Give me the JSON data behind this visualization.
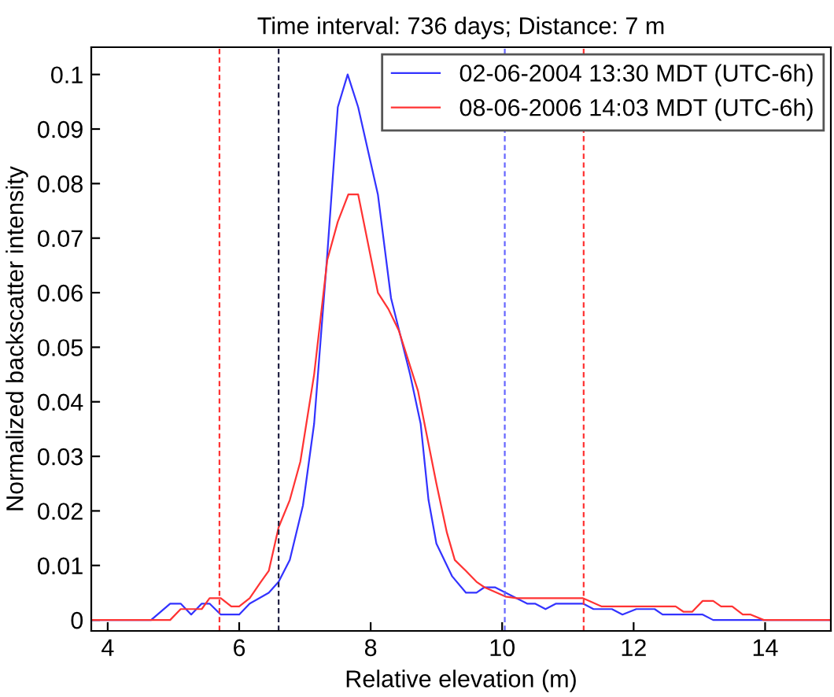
{
  "chart_data": {
    "type": "line",
    "title": "Time interval: 736 days; Distance: 7 m",
    "xlabel": "Relative elevation (m)",
    "ylabel": "Normalized backscatter intensity",
    "xlim": [
      3.75,
      15
    ],
    "xticks": [
      4,
      6,
      8,
      10,
      12,
      14
    ],
    "ylim": [
      -0.002,
      0.105
    ],
    "yticks": [
      0,
      0.01,
      0.02,
      0.03,
      0.04,
      0.05,
      0.06,
      0.07,
      0.08,
      0.09,
      0.1
    ],
    "grid": false,
    "legend": "top right",
    "line_style": "solid",
    "series": [
      {
        "name": "02-06-2004 13:30 MDT (UTC-6h)",
        "color": "#3333ff",
        "x": [
          3.75,
          4.66,
          4.95,
          5.11,
          5.27,
          5.43,
          5.55,
          5.72,
          6.0,
          6.16,
          6.45,
          6.6,
          6.77,
          6.97,
          7.14,
          7.34,
          7.5,
          7.65,
          7.81,
          8.11,
          8.31,
          8.6,
          8.76,
          8.88,
          9.0,
          9.24,
          9.45,
          9.61,
          9.73,
          9.89,
          10.22,
          10.38,
          10.5,
          10.66,
          10.82,
          11.23,
          11.39,
          11.67,
          11.83,
          12.04,
          12.32,
          12.44,
          13.05,
          13.21,
          13.94,
          15
        ],
        "values": [
          0,
          0,
          0.003,
          0.003,
          0.001,
          0.003,
          0.003,
          0.001,
          0.001,
          0.003,
          0.005,
          0.007,
          0.011,
          0.021,
          0.036,
          0.067,
          0.094,
          0.1,
          0.094,
          0.078,
          0.059,
          0.045,
          0.036,
          0.022,
          0.014,
          0.008,
          0.005,
          0.005,
          0.006,
          0.006,
          0.004,
          0.003,
          0.003,
          0.002,
          0.003,
          0.003,
          0.002,
          0.002,
          0.001,
          0.002,
          0.002,
          0.001,
          0.001,
          0,
          0,
          0
        ]
      },
      {
        "name": "08-06-2006 14:03 MDT (UTC-6h)",
        "color": "#ff3333",
        "x": [
          3.75,
          4.95,
          5.11,
          5.43,
          5.55,
          5.72,
          5.88,
          6.0,
          6.16,
          6.33,
          6.45,
          6.6,
          6.77,
          6.93,
          7.14,
          7.34,
          7.5,
          7.66,
          7.81,
          8.11,
          8.27,
          8.43,
          8.72,
          9.0,
          9.16,
          9.28,
          9.45,
          9.61,
          9.73,
          10.05,
          10.22,
          11.23,
          11.51,
          12.64,
          12.76,
          12.89,
          13.05,
          13.21,
          13.33,
          13.5,
          13.66,
          13.78,
          13.98,
          15
        ],
        "values": [
          0,
          0,
          0.002,
          0.002,
          0.004,
          0.004,
          0.0025,
          0.0025,
          0.004,
          0.007,
          0.009,
          0.017,
          0.022,
          0.029,
          0.045,
          0.066,
          0.073,
          0.078,
          0.078,
          0.06,
          0.057,
          0.053,
          0.042,
          0.025,
          0.016,
          0.011,
          0.009,
          0.007,
          0.006,
          0.0043,
          0.004,
          0.004,
          0.0025,
          0.0025,
          0.0015,
          0.0015,
          0.0035,
          0.0035,
          0.0025,
          0.0025,
          0.001,
          0.001,
          0,
          0
        ]
      }
    ],
    "ref_lines": [
      {
        "axis": "x",
        "value": 5.7,
        "color": "#ff3333",
        "line_style": "dashed"
      },
      {
        "axis": "x",
        "value": 6.6,
        "color": "#222244",
        "line_style": "dashed"
      },
      {
        "axis": "x",
        "value": 10.04,
        "color": "#6666ff",
        "line_style": "dashed"
      },
      {
        "axis": "x",
        "value": 11.24,
        "color": "#ff3333",
        "line_style": "dashed"
      }
    ]
  }
}
